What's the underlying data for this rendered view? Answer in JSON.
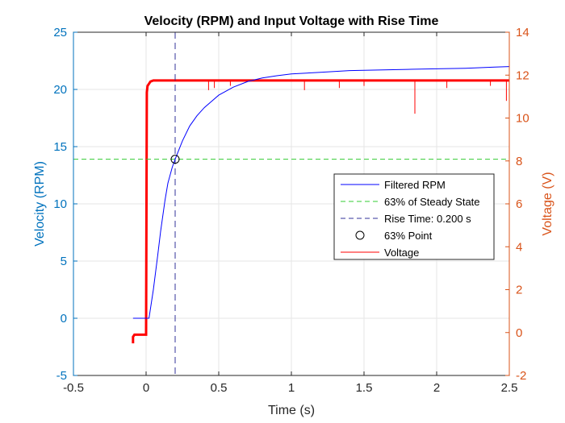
{
  "chart_data": {
    "type": "line",
    "title": "Velocity (RPM) and Input Voltage with Rise Time",
    "xlabel": "Time (s)",
    "ylabel_left": "Velocity (RPM)",
    "ylabel_right": "Voltage (V)",
    "xlim": [
      -0.5,
      2.5
    ],
    "ylim_left": [
      -5,
      25
    ],
    "ylim_right": [
      -2,
      14
    ],
    "x_ticks": [
      -0.5,
      0,
      0.5,
      1,
      1.5,
      2,
      2.5
    ],
    "x_tick_labels": [
      "-0.5",
      "0",
      "0.5",
      "1",
      "1.5",
      "2",
      "2.5"
    ],
    "y_left_ticks": [
      -5,
      0,
      5,
      10,
      15,
      20,
      25
    ],
    "y_left_tick_labels": [
      "-5",
      "0",
      "5",
      "10",
      "15",
      "20",
      "25"
    ],
    "y_right_ticks": [
      -2,
      0,
      2,
      4,
      6,
      8,
      10,
      12,
      14
    ],
    "y_right_tick_labels": [
      "-2",
      "0",
      "2",
      "4",
      "6",
      "8",
      "10",
      "12",
      "14"
    ],
    "grid": true,
    "legend_position": "center-right",
    "series": [
      {
        "name": "Filtered RPM",
        "axis": "left",
        "color": "#0000ff",
        "style": "solid",
        "x": [
          -0.09,
          0.0,
          0.02,
          0.05,
          0.08,
          0.1,
          0.13,
          0.15,
          0.18,
          0.2,
          0.25,
          0.3,
          0.35,
          0.4,
          0.5,
          0.6,
          0.7,
          0.8,
          0.9,
          1.0,
          1.2,
          1.4,
          1.6,
          1.8,
          2.0,
          2.2,
          2.4,
          2.5
        ],
        "y": [
          0,
          0,
          0,
          2.5,
          5.5,
          7.6,
          10.3,
          11.8,
          13.2,
          13.9,
          15.5,
          16.8,
          17.7,
          18.4,
          19.5,
          20.2,
          20.7,
          21.0,
          21.2,
          21.35,
          21.5,
          21.65,
          21.7,
          21.75,
          21.8,
          21.85,
          21.95,
          22.0
        ]
      },
      {
        "name": "63% of Steady State",
        "axis": "left",
        "color": "#33cc33",
        "style": "dashed",
        "y_constant": 13.9
      },
      {
        "name": "Rise Time: 0.200 s",
        "axis": "left",
        "color": "#333399",
        "style": "dashed",
        "x_constant": 0.2
      },
      {
        "name": "63% Point",
        "axis": "left",
        "color": "#000000",
        "style": "marker-circle",
        "x": [
          0.2
        ],
        "y": [
          13.9
        ]
      },
      {
        "name": "Voltage",
        "axis": "right",
        "color": "#ff0000",
        "style": "solid",
        "x": [
          -0.09,
          -0.09,
          -0.08,
          0.0,
          0.0,
          0.005,
          0.01,
          0.02,
          0.03,
          0.05,
          0.1,
          2.5
        ],
        "y": [
          -0.5,
          -0.2,
          -0.1,
          -0.1,
          0.0,
          11.2,
          11.5,
          11.6,
          11.7,
          11.75,
          11.75,
          11.75
        ]
      }
    ]
  }
}
